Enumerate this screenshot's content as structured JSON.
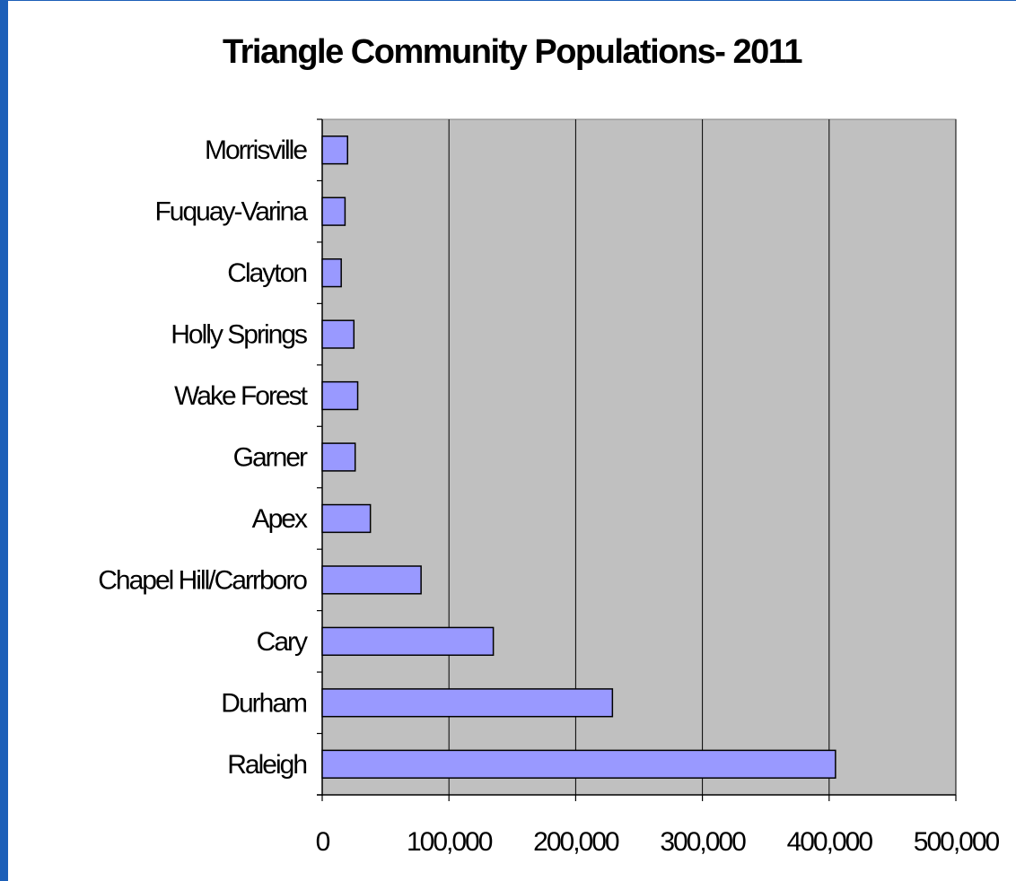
{
  "chart_data": {
    "type": "bar",
    "orientation": "horizontal",
    "title": "Triangle Community Populations- 2011",
    "xlabel": "",
    "ylabel": "",
    "categories": [
      "Raleigh",
      "Durham",
      "Cary",
      "Chapel Hill/Carrboro",
      "Apex",
      "Garner",
      "Wake Forest",
      "Holly Springs",
      "Clayton",
      "Fuquay-Varina",
      "Morrisville"
    ],
    "values": [
      405000,
      229000,
      135000,
      78000,
      38000,
      26000,
      28000,
      25000,
      15000,
      18000,
      20000
    ],
    "xlim": [
      0,
      500000
    ],
    "xticks": [
      "0",
      "100,000",
      "200,000",
      "300,000",
      "400,000",
      "500,000"
    ],
    "grid": "vertical",
    "legend": "none",
    "colors": {
      "plot_background": "#c0c0c0",
      "bar_fill": "#9999ff",
      "bar_stroke": "#000000",
      "slide_border": "#1c5fb8"
    }
  }
}
